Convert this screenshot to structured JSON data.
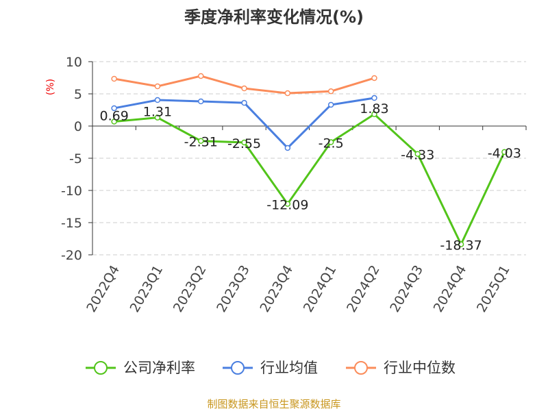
{
  "chart_data": {
    "type": "line",
    "title": "季度净利率变化情况(%)",
    "ylabel": "(%)",
    "ylim": [
      -20,
      10
    ],
    "yticks": [
      10,
      5,
      0,
      -5,
      -10,
      -15,
      -20
    ],
    "grid": true,
    "legend_placement": "bottom",
    "categories": [
      "2022Q4",
      "2023Q1",
      "2023Q2",
      "2023Q3",
      "2023Q4",
      "2024Q1",
      "2024Q2",
      "2024Q3",
      "2024Q4",
      "2025Q1"
    ],
    "series": [
      {
        "name": "公司净利率",
        "color": "#52c41a",
        "labels": true,
        "values": [
          0.69,
          1.31,
          -2.31,
          -2.55,
          -12.09,
          -2.5,
          1.83,
          -4.33,
          -18.37,
          -4.03
        ]
      },
      {
        "name": "行业均值",
        "color": "#4a7fe0",
        "labels": false,
        "values": [
          2.77,
          4.04,
          3.83,
          3.6,
          -3.4,
          3.3,
          4.36,
          null,
          null,
          null
        ]
      },
      {
        "name": "行业中位数",
        "color": "#fb8c5a",
        "labels": false,
        "values": [
          7.34,
          6.17,
          7.77,
          5.85,
          5.1,
          5.4,
          7.45,
          null,
          null,
          null
        ]
      }
    ]
  },
  "footer": "制图数据来自恒生聚源数据库"
}
